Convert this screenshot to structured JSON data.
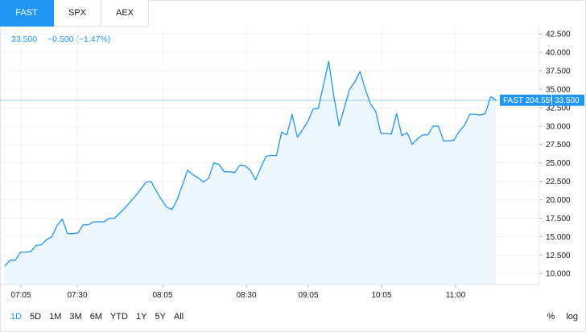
{
  "tabs": [
    {
      "label": "FAST",
      "active": true
    },
    {
      "label": "SPX",
      "active": false
    },
    {
      "label": "AEX",
      "active": false
    }
  ],
  "quote": {
    "price": "33.500",
    "change": "−0.500 (−1.47%)"
  },
  "ranges": [
    {
      "label": "1D",
      "active": true
    },
    {
      "label": "5D",
      "active": false
    },
    {
      "label": "1M",
      "active": false
    },
    {
      "label": "3M",
      "active": false
    },
    {
      "label": "6M",
      "active": false
    },
    {
      "label": "YTD",
      "active": false
    },
    {
      "label": "1Y",
      "active": false
    },
    {
      "label": "5Y",
      "active": false
    },
    {
      "label": "All",
      "active": false
    }
  ],
  "controls": {
    "percent": "%",
    "log": "log"
  },
  "colors": {
    "accent": "#2196f3",
    "area": "#eaf4fd",
    "grid": "#f0f3fa",
    "text": "#131722"
  },
  "chart_data": {
    "type": "area",
    "title": "",
    "xlabel": "",
    "ylabel": "",
    "ylim": [
      8.5,
      43.5
    ],
    "y_ticks": [
      10,
      12.5,
      15,
      17.5,
      20,
      22.5,
      25,
      27.5,
      30,
      32.5,
      35,
      37.5,
      40,
      42.5
    ],
    "y_tick_labels": [
      "10.000",
      "12.500",
      "15.000",
      "17.500",
      "20.000",
      "22.500",
      "25.000",
      "27.500",
      "30.000",
      "32.500",
      "35.000",
      "37.500",
      "40.000",
      "42.500"
    ],
    "x_tick_labels": [
      "07:05",
      "07:30",
      "08:05",
      "08:30",
      "09:05",
      "10:05",
      "11:00"
    ],
    "series": [
      {
        "values": [
          11.0,
          11.8,
          11.8,
          12.9,
          12.9,
          13.0,
          13.8,
          13.9,
          14.6,
          15.0,
          16.5,
          17.4,
          15.4,
          15.4,
          15.5,
          16.6,
          16.6,
          17.0,
          17.0,
          17.0,
          17.5,
          17.5,
          18.2,
          18.9,
          19.7,
          20.5,
          21.4,
          22.4,
          22.5,
          21.2,
          20.0,
          19.0,
          18.7,
          20.0,
          22.0,
          24.0,
          23.4,
          23.0,
          22.4,
          22.9,
          25.0,
          24.8,
          23.8,
          23.8,
          23.7,
          24.7,
          24.6,
          24.0,
          22.7,
          24.4,
          25.9,
          26.0,
          26.0,
          29.2,
          28.8,
          31.6,
          28.5,
          29.5,
          30.6,
          32.3,
          32.4,
          35.6,
          38.8,
          34.0,
          30.0,
          32.5,
          35.0,
          36.0,
          37.4,
          35.0,
          33.0,
          32.0,
          29.0,
          29.0,
          28.9,
          31.7,
          28.7,
          29.1,
          27.5,
          28.3,
          28.8,
          28.8,
          30.0,
          30.0,
          28.0,
          28.0,
          28.1,
          29.3,
          30.1,
          31.6,
          31.6,
          31.5,
          31.7,
          34.0,
          33.5
        ]
      }
    ],
    "last_label": "FAST 204.55%",
    "last_value_label": "33.500",
    "last_value": 33.5,
    "grid": true
  }
}
